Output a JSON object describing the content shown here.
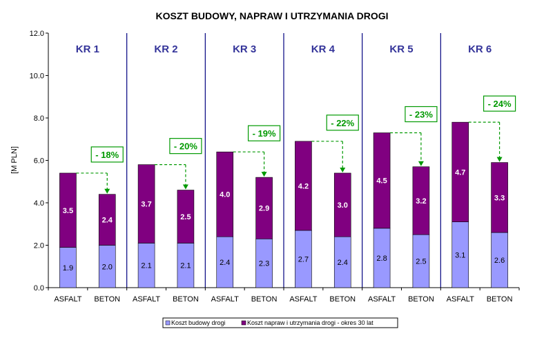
{
  "colors": {
    "construction": "#9999ff",
    "maintenance": "#800080",
    "separator": "#000080",
    "group_label": "#333399",
    "savings": "#009900",
    "axis": "#000000"
  },
  "chart_data": {
    "type": "bar",
    "stacked": true,
    "title": "KOSZT BUDOWY, NAPRAW I UTRZYMANIA DROGI",
    "ylabel": "[M PLN]",
    "xlabel": "",
    "ylim": [
      0,
      12
    ],
    "yticks": [
      "0.0",
      "2.0",
      "4.0",
      "6.0",
      "8.0",
      "10.0",
      "12.0"
    ],
    "grid": false,
    "legend_position": "bottom",
    "groups": [
      "KR 1",
      "KR 2",
      "KR 3",
      "KR 4",
      "KR 5",
      "KR 6"
    ],
    "categories": [
      "ASFALT",
      "BETON",
      "ASFALT",
      "BETON",
      "ASFALT",
      "BETON",
      "ASFALT",
      "BETON",
      "ASFALT",
      "BETON",
      "ASFALT",
      "BETON"
    ],
    "series": [
      {
        "name": "Koszt budowy drogi",
        "values": [
          1.9,
          2.0,
          2.1,
          2.1,
          2.4,
          2.3,
          2.7,
          2.4,
          2.8,
          2.5,
          3.1,
          2.6
        ],
        "labels": [
          "1.9",
          "2.0",
          "2.1",
          "2.1",
          "2.4",
          "2.3",
          "2.7",
          "2.4",
          "2.8",
          "2.5",
          "3.1",
          "2.6"
        ]
      },
      {
        "name": "Koszt napraw i utrzymania drogi - okres 30 lat",
        "values": [
          3.5,
          2.4,
          3.7,
          2.5,
          4.0,
          2.9,
          4.2,
          3.0,
          4.5,
          3.2,
          4.7,
          3.3
        ],
        "labels": [
          "3.5",
          "2.4",
          "3.7",
          "2.5",
          "4.0",
          "2.9",
          "4.2",
          "3.0",
          "4.5",
          "3.2",
          "4.7",
          "3.3"
        ]
      }
    ],
    "annotations": [
      "- 18%",
      "- 20%",
      "- 19%",
      "- 22%",
      "- 23%",
      "- 24%"
    ]
  }
}
